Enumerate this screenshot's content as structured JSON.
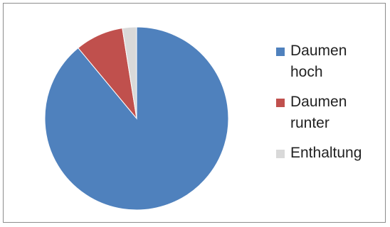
{
  "chart_data": {
    "type": "pie",
    "title": "",
    "categories": [
      "Daumen hoch",
      "Daumen runter",
      "Enthaltung"
    ],
    "values": [
      89,
      8.5,
      2.5
    ],
    "colors": [
      "#4f81bd",
      "#c0504d",
      "#d9d9d9"
    ],
    "legend": {
      "position": "right",
      "labels": [
        "Daumen hoch",
        "Daumen runter",
        "Enthaltung"
      ]
    },
    "start_angle_deg": 0,
    "direction": "clockwise"
  }
}
